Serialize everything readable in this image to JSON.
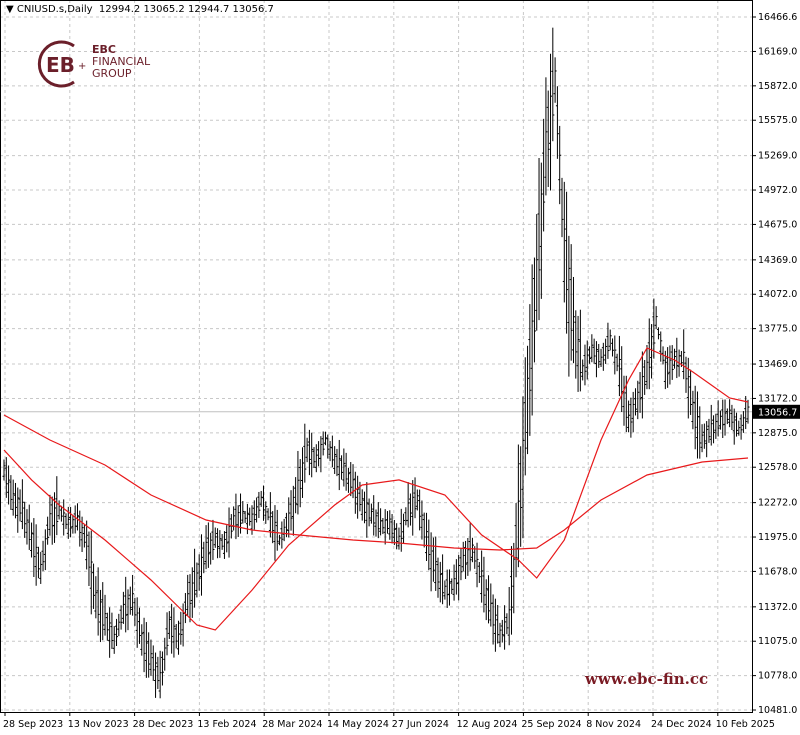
{
  "header": {
    "symbol": "CNIUSD.s,Daily",
    "open": "12994.2",
    "high": "13065.2",
    "low": "12944.7",
    "close": "13056.7"
  },
  "logo": {
    "line1": "EBC",
    "line2": "FINANCIAL",
    "line3": "GROUP"
  },
  "watermark": "www.ebc-fin.cc",
  "colors": {
    "bars": "#000000",
    "ma": "#e8191b",
    "current_price_line": "#c0c0c0",
    "brand": "#6b1f2a"
  },
  "chart_data": {
    "type": "ohlc",
    "grid": true,
    "current_price": 13056.7,
    "ylim": [
      10481.0,
      16466.6
    ],
    "y_ticks": [
      "16466.6",
      "16169.0",
      "15872.0",
      "15575.0",
      "15269.0",
      "14972.0",
      "14675.0",
      "14369.0",
      "14072.0",
      "13775.0",
      "13469.0",
      "13172.0",
      "12875.0",
      "12578.0",
      "12272.0",
      "11975.0",
      "11678.0",
      "11372.0",
      "11075.0",
      "10778.0",
      "10481.0"
    ],
    "x_ticks": [
      "28 Sep 2023",
      "13 Nov 2023",
      "28 Dec 2023",
      "13 Feb 2024",
      "28 Mar 2024",
      "14 May 2024",
      "27 Jun 2024",
      "12 Aug 2024",
      "25 Sep 2024",
      "8 Nov 2024",
      "24 Dec 2024",
      "10 Feb 2025"
    ],
    "closes": [
      12554,
      12295,
      12209,
      11949,
      11690,
      12122,
      12209,
      12079,
      12122,
      11906,
      11431,
      11259,
      11086,
      11345,
      11431,
      11086,
      10913,
      10740,
      11215,
      11086,
      11431,
      11604,
      11863,
      11949,
      11906,
      12122,
      12166,
      12122,
      12295,
      12122,
      11949,
      12122,
      12381,
      12727,
      12640,
      12813,
      12640,
      12554,
      12424,
      12252,
      12166,
      12079,
      12079,
      11949,
      12209,
      12295,
      11949,
      11690,
      11517,
      11561,
      11777,
      11863,
      11604,
      11345,
      11129,
      11259,
      12122,
      13159,
      14195,
      15318,
      15922,
      14454,
      13763,
      13418,
      13590,
      13504,
      13677,
      13418,
      12985,
      13159,
      13418,
      13849,
      13418,
      13504,
      13504,
      13072,
      12813,
      12900,
      12985,
      13029,
      12900,
      13056.7
    ],
    "moving_averages": [
      {
        "points": [
          [
            0,
            13029
          ],
          [
            5,
            12813
          ],
          [
            11,
            12597
          ],
          [
            16,
            12338
          ],
          [
            22,
            12122
          ],
          [
            27,
            12036
          ],
          [
            32,
            11993
          ],
          [
            38,
            11949
          ],
          [
            43,
            11923
          ],
          [
            49,
            11880
          ],
          [
            54,
            11863
          ],
          [
            58,
            11880
          ],
          [
            61,
            12036
          ],
          [
            65,
            12295
          ],
          [
            70,
            12511
          ],
          [
            76,
            12623
          ],
          [
            81,
            12658
          ]
        ]
      },
      {
        "points": [
          [
            0,
            12727
          ],
          [
            3,
            12468
          ],
          [
            6,
            12252
          ],
          [
            11,
            11949
          ],
          [
            16,
            11604
          ],
          [
            21,
            11215
          ],
          [
            23,
            11172
          ],
          [
            27,
            11517
          ],
          [
            31,
            11906
          ],
          [
            36,
            12252
          ],
          [
            39,
            12424
          ],
          [
            43,
            12468
          ],
          [
            48,
            12338
          ],
          [
            52,
            11993
          ],
          [
            56,
            11777
          ],
          [
            58,
            11621
          ],
          [
            61,
            11949
          ],
          [
            65,
            12813
          ],
          [
            68,
            13331
          ],
          [
            70,
            13608
          ],
          [
            73,
            13504
          ],
          [
            75,
            13400
          ],
          [
            77,
            13288
          ],
          [
            79,
            13176
          ],
          [
            81,
            13141
          ]
        ]
      }
    ]
  }
}
